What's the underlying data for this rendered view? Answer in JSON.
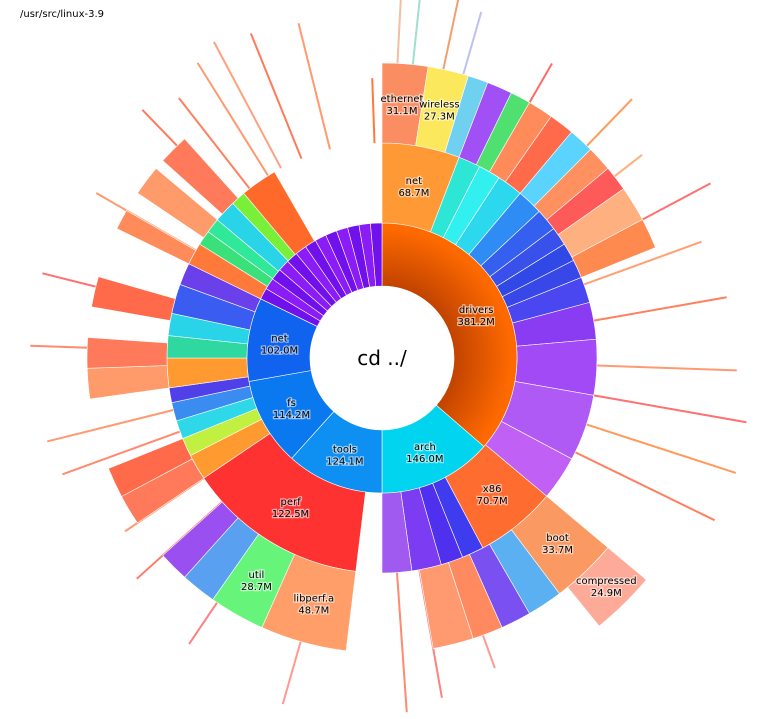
{
  "window": {
    "path": "/usr/src/linux-3.9"
  },
  "center": {
    "label": "cd ../"
  },
  "chart_data": {
    "type": "sunburst",
    "root": "linux-3.9",
    "units": "M",
    "segments": [
      {
        "name": "drivers",
        "size": "381.2M",
        "value": 381.2,
        "depth": 1,
        "start": 0,
        "end": 131,
        "color": "#ff6a00",
        "gradient": true,
        "labeled": true
      },
      {
        "name": "arch",
        "size": "146.0M",
        "value": 146.0,
        "depth": 1,
        "start": 131,
        "end": 180,
        "color": "#00d4ee",
        "labeled": true
      },
      {
        "name": "tools",
        "size": "124.1M",
        "value": 124.1,
        "depth": 1,
        "start": 180,
        "end": 222,
        "color": "#0e8ff2",
        "labeled": true
      },
      {
        "name": "fs",
        "size": "114.2M",
        "value": 114.2,
        "depth": 1,
        "start": 222,
        "end": 260,
        "color": "#0a78ee",
        "labeled": true
      },
      {
        "name": "net",
        "size": "102.0M",
        "value": 102.0,
        "depth": 1,
        "start": 260,
        "end": 296,
        "color": "#0f63ee",
        "labeled": true
      },
      {
        "name": "",
        "value": 0,
        "depth": 1,
        "start": 296,
        "end": 360,
        "color": "#7712ee",
        "stripes": 13
      },
      {
        "name": "net",
        "size": "68.7M",
        "value": 68.7,
        "depth": 2,
        "start": 0,
        "end": 21,
        "color": "#ff9935",
        "labeled": true
      },
      {
        "name": "x86",
        "size": "70.7M",
        "value": 70.7,
        "depth": 2,
        "start": 130,
        "end": 152,
        "color": "#ff6c30",
        "labeled": true
      },
      {
        "name": "perf",
        "size": "122.5M",
        "value": 122.5,
        "depth": 2,
        "start": 187,
        "end": 236,
        "color": "#ff3232",
        "labeled": true
      },
      {
        "name": "util",
        "size": "28.7M",
        "value": 28.7,
        "depth": 3,
        "start": 204,
        "end": 215,
        "color": "#66f47a",
        "labeled": true
      },
      {
        "name": "libperf.a",
        "size": "48.7M",
        "value": 48.7,
        "depth": 3,
        "start": 187,
        "end": 204,
        "color": "#ff9e68",
        "labeled": true
      },
      {
        "name": "ethernet",
        "size": "31.1M",
        "value": 31.1,
        "depth": 3,
        "start": 0,
        "end": 9,
        "color": "#fa8d62",
        "labeled": true
      },
      {
        "name": "wireless",
        "size": "27.3M",
        "value": 27.3,
        "depth": 3,
        "start": 9,
        "end": 17,
        "color": "#fce85c",
        "labeled": true
      },
      {
        "name": "boot",
        "size": "33.7M",
        "value": 33.7,
        "depth": 3,
        "start": 130,
        "end": 143,
        "color": "#fa9a62",
        "labeled": true
      },
      {
        "name": "compressed",
        "size": "24.9M",
        "value": 24.9,
        "depth": 4,
        "start": 130,
        "end": 141,
        "color": "#fdaa98",
        "labeled": true
      }
    ]
  }
}
